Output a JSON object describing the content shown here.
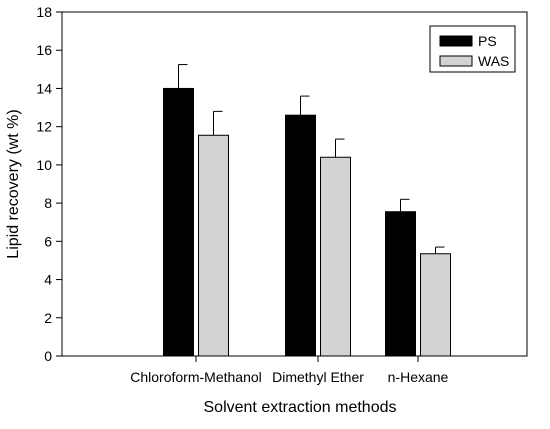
{
  "chart_data": {
    "type": "bar",
    "title": "",
    "xlabel": "Solvent extraction methods",
    "ylabel": "Lipid recovery (wt %)",
    "categories": [
      "Chloroform-Methanol",
      "Dimethyl Ether",
      "n-Hexane"
    ],
    "series": [
      {
        "name": "PS",
        "values": [
          14.0,
          12.6,
          7.55
        ],
        "errors": [
          1.25,
          1.0,
          0.65
        ],
        "color": "#000000"
      },
      {
        "name": "WAS",
        "values": [
          11.55,
          10.4,
          5.35
        ],
        "errors": [
          1.25,
          0.95,
          0.35
        ],
        "color": "#d3d3d3"
      }
    ],
    "ylim": [
      0,
      18
    ],
    "yticks": [
      "0",
      "2",
      "4",
      "6",
      "8",
      "10",
      "12",
      "14",
      "16",
      "18"
    ],
    "grid": false,
    "legend_position": "top-right"
  }
}
